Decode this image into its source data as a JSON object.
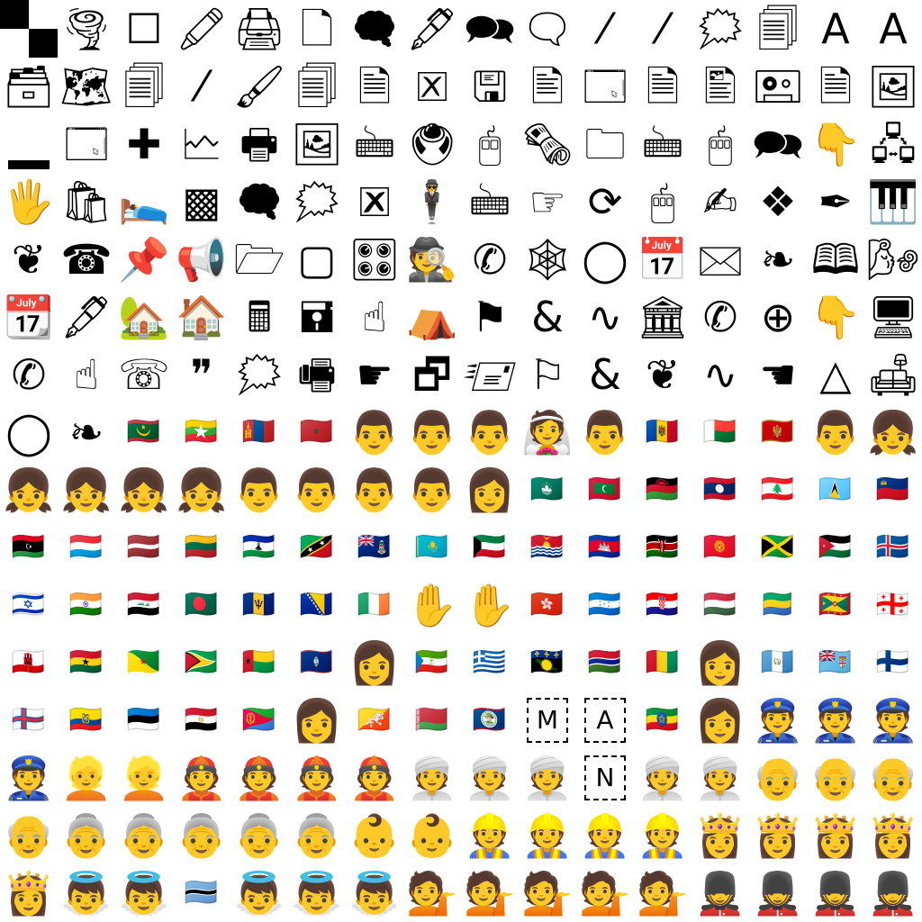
{
  "cells": [
    {
      "name": "checkerboard-icon",
      "kind": "checker"
    },
    {
      "name": "tornado-icon",
      "glyph": "🌪"
    },
    {
      "name": "empty-square-icon",
      "glyph": "☐"
    },
    {
      "name": "crayon-icon",
      "glyph": "🖍"
    },
    {
      "name": "printer-icon",
      "glyph": "🖨"
    },
    {
      "name": "page-icon",
      "glyph": "🗋"
    },
    {
      "name": "thought-bubble-icon",
      "glyph": "🗬"
    },
    {
      "name": "fountain-pen-icon",
      "glyph": "🖋"
    },
    {
      "name": "speech-bubbles-icon",
      "glyph": "🗪"
    },
    {
      "name": "speech-bubble-icon",
      "glyph": "🗨"
    },
    {
      "name": "light-rays-icon",
      "glyph": "⁄"
    },
    {
      "name": "light-rays-icon",
      "glyph": "⁄"
    },
    {
      "name": "anger-bubble-icon",
      "glyph": "🗯"
    },
    {
      "name": "pages-icon",
      "glyph": "🗐"
    },
    {
      "name": "font-size-icon",
      "glyph": "A"
    },
    {
      "name": "font-size-icon",
      "glyph": "A"
    },
    {
      "name": "card-file-box-icon",
      "glyph": "🗃"
    },
    {
      "name": "world-map-icon",
      "glyph": "🗺"
    },
    {
      "name": "pages-icon",
      "glyph": "🗐"
    },
    {
      "name": "light-rays-icon",
      "glyph": "⁄"
    },
    {
      "name": "paintbrush-icon",
      "glyph": "🖌"
    },
    {
      "name": "pages-icon",
      "glyph": "🗐"
    },
    {
      "name": "document-text-icon",
      "glyph": "🗎"
    },
    {
      "name": "cancel-box-icon",
      "glyph": "🗵"
    },
    {
      "name": "floppy-disk-icon",
      "glyph": "🖫"
    },
    {
      "name": "document-pen-icon",
      "glyph": "🖹"
    },
    {
      "name": "window-icon",
      "glyph": "🗔"
    },
    {
      "name": "document-text-icon",
      "glyph": "🗎"
    },
    {
      "name": "document-picture-icon",
      "glyph": "🖺"
    },
    {
      "name": "cassette-icon",
      "glyph": "🖭"
    },
    {
      "name": "document-text-icon",
      "glyph": "🗎"
    },
    {
      "name": "document-picture-icon",
      "glyph": "🖼"
    },
    {
      "name": "underscore-bar-icon",
      "kind": "bar"
    },
    {
      "name": "window-icon",
      "glyph": "🗔"
    },
    {
      "name": "cross-icon",
      "glyph": "✚"
    },
    {
      "name": "chart-icon",
      "glyph": "🗠"
    },
    {
      "name": "printer-icon",
      "glyph": "🖶"
    },
    {
      "name": "framed-picture-icon",
      "glyph": "🖼"
    },
    {
      "name": "keyboard-icon",
      "glyph": "🖮"
    },
    {
      "name": "trackball-icon",
      "glyph": "🖲"
    },
    {
      "name": "mouse-icon",
      "glyph": "🖰"
    },
    {
      "name": "newspaper-icon",
      "glyph": "🗞"
    },
    {
      "name": "folder-icon",
      "glyph": "🗀"
    },
    {
      "name": "keyboard-icon",
      "glyph": "🖮"
    },
    {
      "name": "mouse-icon",
      "glyph": "🖱"
    },
    {
      "name": "speech-bubbles-icon",
      "glyph": "🗪"
    },
    {
      "name": "hand-down-icon",
      "glyph": "👇"
    },
    {
      "name": "network-icon",
      "glyph": "🖧"
    },
    {
      "name": "raised-hand-icon",
      "glyph": "🖐"
    },
    {
      "name": "shopping-bags-icon",
      "glyph": "🛍"
    },
    {
      "name": "bed-icon",
      "glyph": "🛌"
    },
    {
      "name": "frame-icon",
      "glyph": "▩"
    },
    {
      "name": "thought-bubble-icon",
      "glyph": "🗬"
    },
    {
      "name": "anger-bubble-icon",
      "glyph": "🗯"
    },
    {
      "name": "framed-x-icon",
      "glyph": "🗷"
    },
    {
      "name": "levitating-man-icon",
      "glyph": "🕴"
    },
    {
      "name": "keyboard-icon",
      "glyph": "🖮"
    },
    {
      "name": "hand-pointing-icon",
      "glyph": "☞"
    },
    {
      "name": "refresh-icon",
      "glyph": "⟳"
    },
    {
      "name": "mouse-icon",
      "glyph": "🖱"
    },
    {
      "name": "writing-hand-icon",
      "glyph": "✍"
    },
    {
      "name": "ornament-icon",
      "glyph": "❖"
    },
    {
      "name": "pen-icon",
      "glyph": "✒"
    },
    {
      "name": "piano-keyboard-icon",
      "glyph": "🎹"
    },
    {
      "name": "ornament-icon",
      "glyph": "❦"
    },
    {
      "name": "telephone-icon",
      "glyph": "☎"
    },
    {
      "name": "pushpin-icon",
      "glyph": "📌"
    },
    {
      "name": "megaphone-icon",
      "glyph": "📢"
    },
    {
      "name": "folder-open-icon",
      "glyph": "🗁"
    },
    {
      "name": "empty-frame-icon",
      "glyph": "▢"
    },
    {
      "name": "control-knobs-icon",
      "glyph": "🎛"
    },
    {
      "name": "detective-icon",
      "glyph": "🕵"
    },
    {
      "name": "handset-icon",
      "glyph": "✆"
    },
    {
      "name": "spider-web-icon",
      "glyph": "🕸"
    },
    {
      "name": "ring-icon",
      "glyph": "◯"
    },
    {
      "name": "calendar-icon",
      "glyph": "📅"
    },
    {
      "name": "envelope-icon",
      "glyph": "🖂"
    },
    {
      "name": "ornament-icon",
      "glyph": "❧"
    },
    {
      "name": "book-icon",
      "glyph": "🕮"
    },
    {
      "name": "wind-face-icon",
      "glyph": "🌬"
    },
    {
      "name": "calendar-icon",
      "glyph": "📆"
    },
    {
      "name": "fountain-pen-icon",
      "glyph": "🖋"
    },
    {
      "name": "house-garden-icon",
      "glyph": "🏡"
    },
    {
      "name": "house-icon",
      "glyph": "🏠"
    },
    {
      "name": "calculator-icon",
      "glyph": "🖩"
    },
    {
      "name": "floppy-disk-icon",
      "glyph": "🖬"
    },
    {
      "name": "hand-up-icon",
      "glyph": "☝"
    },
    {
      "name": "tent-icon",
      "glyph": "⛺"
    },
    {
      "name": "flag-icon",
      "glyph": "⚑"
    },
    {
      "name": "et-ligature-icon",
      "glyph": "&"
    },
    {
      "name": "ornament-icon",
      "glyph": "∿"
    },
    {
      "name": "classical-building-icon",
      "glyph": "🏛"
    },
    {
      "name": "handset-icon",
      "glyph": "✆"
    },
    {
      "name": "celtic-cross-icon",
      "glyph": "⊕"
    },
    {
      "name": "hand-down-icon",
      "glyph": "👇"
    },
    {
      "name": "desktop-computer-icon",
      "glyph": "🖥"
    },
    {
      "name": "handset-icon",
      "glyph": "✆"
    },
    {
      "name": "hand-up-icon",
      "glyph": "☝"
    },
    {
      "name": "telephone-icon",
      "glyph": "☏"
    },
    {
      "name": "quote-mark-icon",
      "glyph": "❞"
    },
    {
      "name": "anger-bubble-icon",
      "glyph": "🗯"
    },
    {
      "name": "printer-icon",
      "glyph": "🖷"
    },
    {
      "name": "hand-pointing-icon",
      "glyph": "☛"
    },
    {
      "name": "windows-icon",
      "glyph": "🗗"
    },
    {
      "name": "envelope-icon",
      "glyph": "🖅"
    },
    {
      "name": "flag-icon",
      "glyph": "⚐"
    },
    {
      "name": "et-ligature-icon",
      "glyph": "&"
    },
    {
      "name": "ornament-icon",
      "glyph": "❦"
    },
    {
      "name": "ornament-icon",
      "glyph": "∿"
    },
    {
      "name": "hand-pointing-icon",
      "glyph": "☚"
    },
    {
      "name": "triangle-icon",
      "glyph": "△"
    },
    {
      "name": "couch-lamp-icon",
      "glyph": "🛋"
    },
    {
      "name": "ring-icon",
      "glyph": "◯"
    },
    {
      "name": "ornament-icon",
      "glyph": "❧"
    },
    {
      "name": "flag-mauritania-icon",
      "flag": "MR"
    },
    {
      "name": "flag-myanmar-icon",
      "flag": "MM"
    },
    {
      "name": "flag-mongolia-icon",
      "flag": "MN"
    },
    {
      "name": "flag-morocco-icon",
      "flag": "MA"
    },
    {
      "name": "man-face-icon",
      "glyph": "👨"
    },
    {
      "name": "man-face-icon",
      "glyph": "👨"
    },
    {
      "name": "man-face-icon",
      "glyph": "👨"
    },
    {
      "name": "bride-veil-icon",
      "glyph": "👰"
    },
    {
      "name": "man-face-icon",
      "glyph": "👨"
    },
    {
      "name": "flag-moldova-icon",
      "flag": "MD"
    },
    {
      "name": "flag-madagascar-icon",
      "flag": "MG"
    },
    {
      "name": "flag-montenegro-icon",
      "flag": "ME"
    },
    {
      "name": "man-face-icon",
      "glyph": "👨"
    },
    {
      "name": "girl-face-icon",
      "glyph": "👧"
    },
    {
      "name": "girl-face-icon",
      "glyph": "👧"
    },
    {
      "name": "girl-face-icon",
      "glyph": "👧"
    },
    {
      "name": "girl-face-icon",
      "glyph": "👧"
    },
    {
      "name": "girl-face-icon",
      "glyph": "👧"
    },
    {
      "name": "man-face-icon",
      "glyph": "👨"
    },
    {
      "name": "man-face-icon",
      "glyph": "👨"
    },
    {
      "name": "man-face-icon",
      "glyph": "👨"
    },
    {
      "name": "man-face-icon",
      "glyph": "👨"
    },
    {
      "name": "woman-face-icon",
      "glyph": "👩"
    },
    {
      "name": "flag-macau-icon",
      "flag": "MO"
    },
    {
      "name": "flag-maldives-icon",
      "flag": "MV"
    },
    {
      "name": "flag-malawi-icon",
      "flag": "MW"
    },
    {
      "name": "flag-laos-icon",
      "flag": "LA"
    },
    {
      "name": "flag-lebanon-icon",
      "flag": "LB"
    },
    {
      "name": "flag-saint-lucia-icon",
      "flag": "LC"
    },
    {
      "name": "flag-liechtenstein-icon",
      "flag": "LI"
    },
    {
      "name": "flag-libya-icon",
      "flag": "LY"
    },
    {
      "name": "flag-luxembourg-icon",
      "flag": "LU"
    },
    {
      "name": "flag-latvia-icon",
      "flag": "LV"
    },
    {
      "name": "flag-lithuania-icon",
      "flag": "LT"
    },
    {
      "name": "flag-lesotho-icon",
      "flag": "LS"
    },
    {
      "name": "flag-saint-kitts-icon",
      "flag": "KN"
    },
    {
      "name": "flag-cayman-islands-icon",
      "flag": "KY"
    },
    {
      "name": "flag-kazakhstan-icon",
      "flag": "KZ"
    },
    {
      "name": "flag-kuwait-icon",
      "flag": "KW"
    },
    {
      "name": "flag-kiribati-icon",
      "flag": "KI"
    },
    {
      "name": "flag-cambodia-icon",
      "flag": "KH"
    },
    {
      "name": "flag-kenya-icon",
      "flag": "KE"
    },
    {
      "name": "flag-kyrgyzstan-icon",
      "flag": "KG"
    },
    {
      "name": "flag-jamaica-icon",
      "flag": "JM"
    },
    {
      "name": "flag-jordan-icon",
      "flag": "JO"
    },
    {
      "name": "flag-iceland-icon",
      "flag": "IS"
    },
    {
      "name": "flag-israel-icon",
      "flag": "IL"
    },
    {
      "name": "flag-india-icon",
      "flag": "IN"
    },
    {
      "name": "flag-iraq-icon",
      "flag": "IQ"
    },
    {
      "name": "flag-bangladesh-icon",
      "flag": "BD"
    },
    {
      "name": "flag-barbados-icon",
      "flag": "BB"
    },
    {
      "name": "flag-bosnia-icon",
      "flag": "BA"
    },
    {
      "name": "flag-ireland-icon",
      "flag": "IE"
    },
    {
      "name": "raised-hand-icon",
      "glyph": "✋"
    },
    {
      "name": "raised-hand-icon",
      "glyph": "✋"
    },
    {
      "name": "flag-hong-kong-icon",
      "flag": "HK"
    },
    {
      "name": "flag-honduras-icon",
      "flag": "HN"
    },
    {
      "name": "flag-croatia-icon",
      "flag": "HR"
    },
    {
      "name": "flag-hungary-icon",
      "flag": "HU"
    },
    {
      "name": "flag-gabon-icon",
      "flag": "GA"
    },
    {
      "name": "flag-grenada-icon",
      "flag": "GD"
    },
    {
      "name": "flag-georgia-icon",
      "flag": "GE"
    },
    {
      "name": "flag-gibraltar-icon",
      "flag": "GI"
    },
    {
      "name": "flag-ghana-icon",
      "flag": "GH"
    },
    {
      "name": "flag-french-guiana-icon",
      "flag": "GF"
    },
    {
      "name": "flag-guyana-icon",
      "flag": "GY"
    },
    {
      "name": "flag-guinea-bissau-icon",
      "flag": "GW"
    },
    {
      "name": "flag-guam-icon",
      "flag": "GU"
    },
    {
      "name": "woman-face-icon",
      "glyph": "👩"
    },
    {
      "name": "flag-equatorial-guinea-icon",
      "flag": "GQ"
    },
    {
      "name": "flag-greece-icon",
      "flag": "GR"
    },
    {
      "name": "flag-guadeloupe-icon",
      "flag": "GP"
    },
    {
      "name": "flag-gambia-icon",
      "flag": "GM"
    },
    {
      "name": "flag-guinea-icon",
      "flag": "GN"
    },
    {
      "name": "woman-face-icon",
      "glyph": "👩"
    },
    {
      "name": "flag-guatemala-icon",
      "flag": "GT"
    },
    {
      "name": "flag-fiji-icon",
      "flag": "FJ"
    },
    {
      "name": "flag-finland-icon",
      "flag": "FI"
    },
    {
      "name": "flag-faroe-islands-icon",
      "flag": "FO"
    },
    {
      "name": "flag-ecuador-icon",
      "flag": "EC"
    },
    {
      "name": "flag-estonia-icon",
      "flag": "EE"
    },
    {
      "name": "flag-egypt-icon",
      "flag": "EG"
    },
    {
      "name": "flag-eritrea-icon",
      "flag": "ER"
    },
    {
      "name": "woman-face-icon",
      "glyph": "👩"
    },
    {
      "name": "flag-bhutan-icon",
      "flag": "BT"
    },
    {
      "name": "flag-belarus-icon",
      "flag": "BY"
    },
    {
      "name": "flag-belize-icon",
      "flag": "BZ"
    },
    {
      "name": "letter-m-tile",
      "letter": "M"
    },
    {
      "name": "letter-a-tile",
      "letter": "A"
    },
    {
      "name": "flag-ethiopia-icon",
      "flag": "ET"
    },
    {
      "name": "woman-face-icon",
      "glyph": "👩"
    },
    {
      "name": "police-officer-icon",
      "glyph": "👮"
    },
    {
      "name": "police-officer-icon",
      "glyph": "👮"
    },
    {
      "name": "police-officer-icon",
      "glyph": "👮"
    },
    {
      "name": "police-officer-icon",
      "glyph": "👮"
    },
    {
      "name": "blond-man-icon",
      "glyph": "👱"
    },
    {
      "name": "blond-man-icon",
      "glyph": "👱"
    },
    {
      "name": "man-cap-icon",
      "glyph": "👲"
    },
    {
      "name": "man-cap-icon",
      "glyph": "👲"
    },
    {
      "name": "man-cap-icon",
      "glyph": "👲"
    },
    {
      "name": "man-cap-icon",
      "glyph": "👲"
    },
    {
      "name": "man-turban-icon",
      "glyph": "👳"
    },
    {
      "name": "man-turban-icon",
      "glyph": "👳"
    },
    {
      "name": "man-turban-icon",
      "glyph": "👳"
    },
    {
      "name": "letter-n-tile",
      "letter": "N"
    },
    {
      "name": "man-turban-icon",
      "glyph": "👳"
    },
    {
      "name": "man-turban-icon",
      "glyph": "👳"
    },
    {
      "name": "old-man-icon",
      "glyph": "👴"
    },
    {
      "name": "old-man-icon",
      "glyph": "👴"
    },
    {
      "name": "old-man-icon",
      "glyph": "👴"
    },
    {
      "name": "old-man-icon",
      "glyph": "👴"
    },
    {
      "name": "old-woman-icon",
      "glyph": "👵"
    },
    {
      "name": "old-woman-icon",
      "glyph": "👵"
    },
    {
      "name": "old-woman-icon",
      "glyph": "👵"
    },
    {
      "name": "old-woman-icon",
      "glyph": "👵"
    },
    {
      "name": "old-woman-icon",
      "glyph": "👵"
    },
    {
      "name": "baby-icon",
      "glyph": "👶"
    },
    {
      "name": "baby-icon",
      "glyph": "👶"
    },
    {
      "name": "construction-worker-icon",
      "glyph": "👷"
    },
    {
      "name": "construction-worker-icon",
      "glyph": "👷"
    },
    {
      "name": "construction-worker-icon",
      "glyph": "👷"
    },
    {
      "name": "construction-worker-icon",
      "glyph": "👷"
    },
    {
      "name": "princess-icon",
      "glyph": "👸"
    },
    {
      "name": "princess-icon",
      "glyph": "👸"
    },
    {
      "name": "princess-icon",
      "glyph": "👸"
    },
    {
      "name": "princess-icon",
      "glyph": "👸"
    },
    {
      "name": "princess-icon",
      "glyph": "👸"
    },
    {
      "name": "baby-angel-icon",
      "glyph": "👼"
    },
    {
      "name": "baby-angel-icon",
      "glyph": "👼"
    },
    {
      "name": "flag-botswana-icon",
      "flag": "BW"
    },
    {
      "name": "baby-angel-icon",
      "glyph": "👼"
    },
    {
      "name": "baby-angel-icon",
      "glyph": "👼"
    },
    {
      "name": "baby-angel-icon",
      "glyph": "👼"
    },
    {
      "name": "information-desk-person-icon",
      "glyph": "💁"
    },
    {
      "name": "information-desk-person-icon",
      "glyph": "💁"
    },
    {
      "name": "information-desk-person-icon",
      "glyph": "💁"
    },
    {
      "name": "information-desk-person-icon",
      "glyph": "💁"
    },
    {
      "name": "information-desk-person-icon",
      "glyph": "💁"
    },
    {
      "name": "guardsman-icon",
      "glyph": "💂"
    },
    {
      "name": "guardsman-icon",
      "glyph": "💂"
    },
    {
      "name": "guardsman-icon",
      "glyph": "💂"
    },
    {
      "name": "guardsman-icon",
      "glyph": "💂"
    }
  ]
}
